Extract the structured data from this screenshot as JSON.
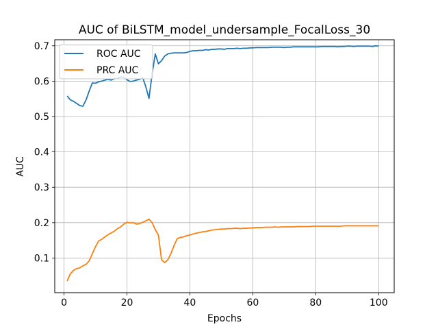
{
  "chart_data": {
    "type": "line",
    "title": "AUC of BiLSTM_model_undersample_FocalLoss_30",
    "xlabel": "Epochs",
    "ylabel": "AUC",
    "xlim": [
      -2.95,
      104.95
    ],
    "ylim": [
      0.002,
      0.717
    ],
    "xticks": [
      0,
      20,
      40,
      60,
      80,
      100
    ],
    "yticks": [
      0.1,
      0.2,
      0.3,
      0.4,
      0.5,
      0.6,
      0.7
    ],
    "grid": true,
    "legend_position": "upper-left",
    "x": [
      1,
      2,
      3,
      4,
      5,
      6,
      7,
      8,
      9,
      10,
      11,
      12,
      13,
      14,
      15,
      16,
      17,
      18,
      19,
      20,
      21,
      22,
      23,
      24,
      25,
      26,
      27,
      28,
      29,
      30,
      31,
      32,
      33,
      34,
      35,
      36,
      37,
      38,
      39,
      40,
      41,
      42,
      43,
      44,
      45,
      46,
      47,
      48,
      49,
      50,
      51,
      52,
      53,
      54,
      55,
      56,
      57,
      58,
      59,
      60,
      61,
      62,
      63,
      64,
      65,
      66,
      67,
      68,
      69,
      70,
      71,
      72,
      73,
      74,
      75,
      76,
      77,
      78,
      79,
      80,
      81,
      82,
      83,
      84,
      85,
      86,
      87,
      88,
      89,
      90,
      91,
      92,
      93,
      94,
      95,
      96,
      97,
      98,
      99,
      100
    ],
    "series": [
      {
        "name": "ROC AUC",
        "color": "#1f77b4",
        "values": [
          0.558,
          0.547,
          0.543,
          0.537,
          0.531,
          0.529,
          0.547,
          0.572,
          0.595,
          0.594,
          0.598,
          0.6,
          0.603,
          0.605,
          0.603,
          0.607,
          0.608,
          0.612,
          0.611,
          0.604,
          0.599,
          0.6,
          0.603,
          0.605,
          0.61,
          0.584,
          0.551,
          0.62,
          0.677,
          0.649,
          0.658,
          0.671,
          0.677,
          0.679,
          0.68,
          0.68,
          0.68,
          0.68,
          0.681,
          0.684,
          0.686,
          0.686,
          0.687,
          0.687,
          0.689,
          0.688,
          0.69,
          0.69,
          0.691,
          0.691,
          0.69,
          0.692,
          0.692,
          0.692,
          0.693,
          0.692,
          0.693,
          0.693,
          0.694,
          0.694,
          0.695,
          0.695,
          0.695,
          0.695,
          0.695,
          0.696,
          0.696,
          0.696,
          0.696,
          0.695,
          0.696,
          0.696,
          0.697,
          0.697,
          0.697,
          0.697,
          0.697,
          0.697,
          0.697,
          0.697,
          0.697,
          0.698,
          0.698,
          0.698,
          0.698,
          0.698,
          0.697,
          0.698,
          0.698,
          0.699,
          0.699,
          0.698,
          0.699,
          0.699,
          0.699,
          0.699,
          0.699,
          0.698,
          0.7,
          0.699
        ]
      },
      {
        "name": "PRC AUC",
        "color": "#ff7f0e",
        "values": [
          0.035,
          0.055,
          0.065,
          0.07,
          0.072,
          0.078,
          0.082,
          0.092,
          0.112,
          0.132,
          0.148,
          0.153,
          0.16,
          0.166,
          0.171,
          0.176,
          0.183,
          0.188,
          0.196,
          0.201,
          0.199,
          0.2,
          0.196,
          0.197,
          0.201,
          0.205,
          0.21,
          0.2,
          0.18,
          0.165,
          0.095,
          0.087,
          0.095,
          0.113,
          0.136,
          0.155,
          0.158,
          0.16,
          0.163,
          0.165,
          0.168,
          0.17,
          0.172,
          0.174,
          0.175,
          0.177,
          0.179,
          0.18,
          0.181,
          0.182,
          0.182,
          0.183,
          0.183,
          0.184,
          0.184,
          0.183,
          0.184,
          0.184,
          0.185,
          0.185,
          0.186,
          0.186,
          0.186,
          0.187,
          0.187,
          0.187,
          0.188,
          0.187,
          0.188,
          0.188,
          0.188,
          0.188,
          0.188,
          0.189,
          0.189,
          0.189,
          0.189,
          0.189,
          0.19,
          0.19,
          0.19,
          0.19,
          0.19,
          0.19,
          0.19,
          0.19,
          0.19,
          0.19,
          0.191,
          0.191,
          0.191,
          0.191,
          0.191,
          0.191,
          0.191,
          0.191,
          0.191,
          0.191,
          0.191,
          0.191
        ]
      }
    ]
  }
}
